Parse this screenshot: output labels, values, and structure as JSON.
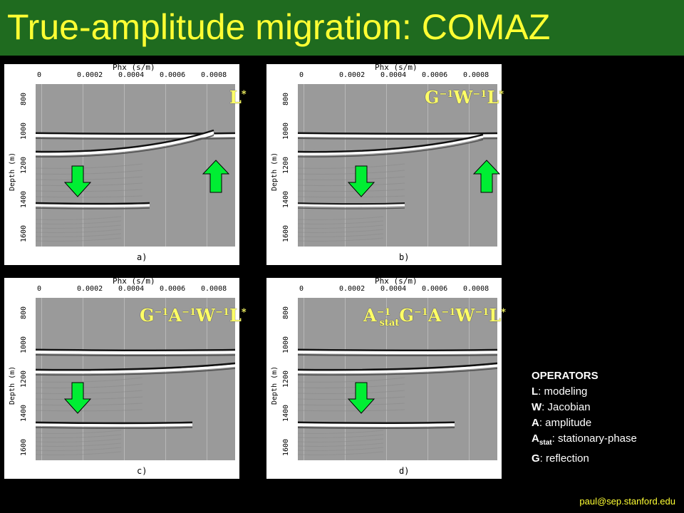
{
  "title": "True-amplitude migration: COMAZ",
  "panels": [
    {
      "axis_title": "Phx (s/m)",
      "x_ticks": [
        "0",
        "0.0002",
        "0.0004",
        "0.0006",
        "0.0008"
      ],
      "y_ticks": [
        "800",
        "1000",
        "1200",
        "1400",
        "1600"
      ],
      "y_label": "Depth (m)",
      "caption": "a)",
      "operator": "L*"
    },
    {
      "axis_title": "Phx (s/m)",
      "x_ticks": [
        "0",
        "0.0002",
        "0.0004",
        "0.0006",
        "0.0008"
      ],
      "y_ticks": [
        "800",
        "1000",
        "1200",
        "1400",
        "1600"
      ],
      "y_label": "Depth (m)",
      "caption": "b)",
      "operator": "G−1W−1L*"
    },
    {
      "axis_title": "Phx (s/m)",
      "x_ticks": [
        "0",
        "0.0002",
        "0.0004",
        "0.0006",
        "0.0008"
      ],
      "y_ticks": [
        "800",
        "1000",
        "1200",
        "1400",
        "1600"
      ],
      "y_label": "Depth (m)",
      "caption": "c)",
      "operator": "G−1A−1W−1L*"
    },
    {
      "axis_title": "Phx (s/m)",
      "x_ticks": [
        "0",
        "0.0002",
        "0.0004",
        "0.0006",
        "0.0008"
      ],
      "y_ticks": [
        "800",
        "1000",
        "1200",
        "1400",
        "1600"
      ],
      "y_label": "Depth (m)",
      "caption": "d)",
      "operator": "A−1statG−1A−1W−1L*"
    }
  ],
  "legend": {
    "heading": "OPERATORS",
    "items": [
      {
        "key": "L",
        "desc": ": modeling"
      },
      {
        "key": "W",
        "desc": ": Jacobian"
      },
      {
        "key": "A",
        "desc": ": amplitude"
      },
      {
        "key": "A",
        "sub": "stat",
        "desc": ":  stationary-phase"
      },
      {
        "key": "G",
        "desc": ": reflection"
      }
    ]
  },
  "footer": "paul@sep.stanford.edu",
  "colors": {
    "title_bar": "#1f6b1f",
    "title_text": "#ffff33",
    "arrow": "#00ee33",
    "formula": "#ffff66"
  }
}
